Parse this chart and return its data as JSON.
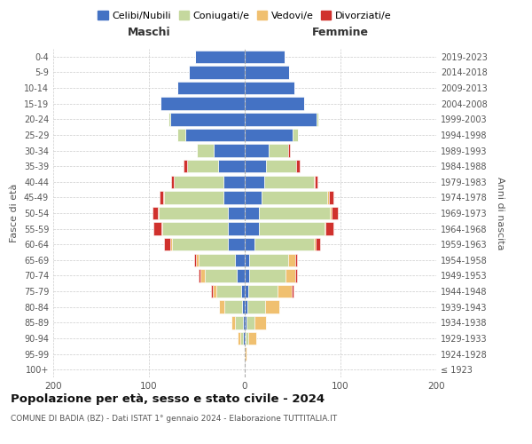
{
  "age_groups": [
    "100+",
    "95-99",
    "90-94",
    "85-89",
    "80-84",
    "75-79",
    "70-74",
    "65-69",
    "60-64",
    "55-59",
    "50-54",
    "45-49",
    "40-44",
    "35-39",
    "30-34",
    "25-29",
    "20-24",
    "15-19",
    "10-14",
    "5-9",
    "0-4"
  ],
  "birth_years": [
    "≤ 1923",
    "1924-1928",
    "1929-1933",
    "1934-1938",
    "1939-1943",
    "1944-1948",
    "1949-1953",
    "1954-1958",
    "1959-1963",
    "1964-1968",
    "1969-1973",
    "1974-1978",
    "1979-1983",
    "1984-1988",
    "1989-1993",
    "1994-1998",
    "1999-2003",
    "2004-2008",
    "2009-2013",
    "2014-2018",
    "2019-2023"
  ],
  "males": {
    "celibi": [
      0,
      0,
      2,
      2,
      3,
      4,
      8,
      10,
      18,
      18,
      18,
      22,
      22,
      28,
      32,
      62,
      78,
      88,
      70,
      58,
      52
    ],
    "coniugati": [
      0,
      0,
      3,
      8,
      18,
      26,
      34,
      38,
      58,
      68,
      72,
      62,
      52,
      32,
      18,
      8,
      2,
      0,
      0,
      0,
      0
    ],
    "vedovi": [
      0,
      0,
      2,
      4,
      6,
      3,
      4,
      3,
      2,
      1,
      1,
      1,
      0,
      0,
      0,
      0,
      0,
      0,
      0,
      0,
      0
    ],
    "divorziati": [
      0,
      0,
      0,
      0,
      0,
      2,
      2,
      2,
      6,
      8,
      5,
      4,
      3,
      4,
      0,
      0,
      0,
      0,
      0,
      0,
      0
    ]
  },
  "females": {
    "nubili": [
      0,
      0,
      1,
      2,
      3,
      4,
      5,
      5,
      10,
      15,
      15,
      18,
      20,
      22,
      25,
      50,
      75,
      62,
      52,
      46,
      42
    ],
    "coniugate": [
      0,
      0,
      3,
      8,
      18,
      30,
      38,
      40,
      62,
      68,
      74,
      68,
      52,
      32,
      20,
      6,
      2,
      0,
      0,
      0,
      0
    ],
    "vedove": [
      0,
      2,
      8,
      12,
      15,
      15,
      10,
      8,
      2,
      1,
      2,
      2,
      1,
      0,
      0,
      0,
      0,
      0,
      0,
      0,
      0
    ],
    "divorziate": [
      0,
      0,
      0,
      0,
      0,
      2,
      2,
      2,
      5,
      9,
      6,
      5,
      3,
      3,
      2,
      0,
      0,
      0,
      0,
      0,
      0
    ]
  },
  "colors": {
    "celibi": "#4472c4",
    "coniugati": "#c5d89e",
    "vedovi": "#f0c070",
    "divorziati": "#d0312d"
  },
  "title": "Popolazione per età, sesso e stato civile - 2024",
  "subtitle": "COMUNE DI BADIA (BZ) - Dati ISTAT 1° gennaio 2024 - Elaborazione TUTTITALIA.IT",
  "xlabel_left": "Maschi",
  "xlabel_right": "Femmine",
  "ylabel_left": "Fasce di età",
  "ylabel_right": "Anni di nascita",
  "xlim": 200,
  "background_color": "#ffffff",
  "legend_labels": [
    "Celibi/Nubili",
    "Coniugati/e",
    "Vedovi/e",
    "Divorziati/e"
  ]
}
